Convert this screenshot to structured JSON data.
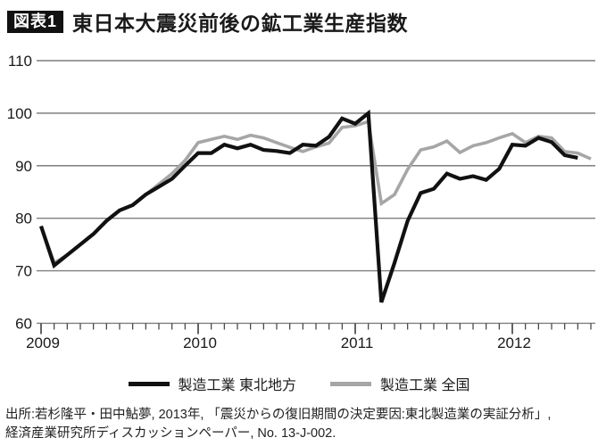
{
  "figure": {
    "badge": "図表1",
    "title": "東日本大震災前後の鉱工業生産指数"
  },
  "legend": [
    {
      "id": "tohoku",
      "label": "製造工業 東北地方",
      "color": "#111111"
    },
    {
      "id": "zenkoku",
      "label": "製造工業 全国",
      "color": "#a6a6a6"
    }
  ],
  "source": {
    "line1": "出所:若杉隆平・田中鮎夢, 2013年, 「震災からの復旧期間の決定要因:東北製造業の実証分析」,",
    "line2": "経済産業研究所ディスカッションペーパー, No. 13-J-002."
  },
  "chart_data": {
    "type": "line",
    "title": "東日本大震災前後の鉱工業生産指数",
    "frequency": "monthly",
    "x_start": "2009-01",
    "x_tick_labels": [
      "2009",
      "2010",
      "2011",
      "2012"
    ],
    "ylim": [
      60,
      110
    ],
    "yticks": [
      60,
      70,
      80,
      90,
      100,
      110
    ],
    "grid": true,
    "legend_position": "bottom",
    "series": [
      {
        "id": "tohoku",
        "name": "製造工業 東北地方",
        "color": "#111111",
        "values": [
          78.5,
          71,
          73,
          75,
          77,
          79.5,
          81.5,
          82.5,
          84.5,
          86,
          87.5,
          90,
          92.4,
          92.4,
          94,
          93.3,
          94,
          93,
          92.8,
          92.4,
          94,
          93.8,
          95.5,
          99,
          98,
          100,
          64,
          71.5,
          79.5,
          84.8,
          85.6,
          88.5,
          87.5,
          88,
          87.3,
          89.4,
          94,
          93.8,
          95.3,
          94.5,
          92,
          91.5
        ]
      },
      {
        "id": "zenkoku",
        "name": "製造工業 全国",
        "color": "#a6a6a6",
        "values": [
          78.5,
          71.5,
          73,
          75,
          77,
          79.5,
          81.5,
          82.5,
          84.5,
          86.5,
          88.5,
          91,
          94.4,
          95,
          95.6,
          95,
          95.8,
          95.3,
          94.4,
          93.5,
          92.7,
          93.6,
          94.3,
          97.3,
          97.6,
          98.4,
          82.8,
          84.5,
          89.3,
          93,
          93.6,
          94.7,
          92.5,
          93.8,
          94.4,
          95.3,
          96.1,
          94.4,
          95.6,
          95.3,
          92.7,
          92.4,
          91.3
        ]
      }
    ]
  }
}
